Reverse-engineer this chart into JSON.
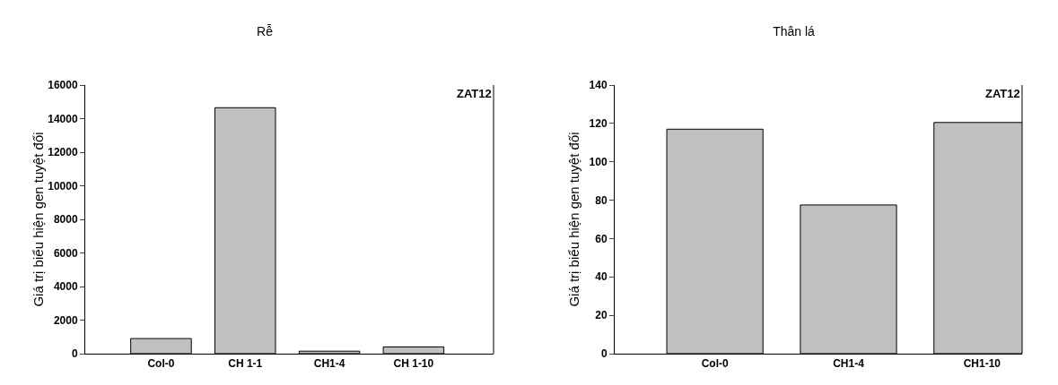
{
  "chart_data": [
    {
      "type": "bar",
      "title": "Rễ",
      "ylabel": "Giá trị biểu hiện gen tuyệt đối",
      "categories": [
        "Col-0",
        "CH 1-1",
        "CH1-4",
        "CH 1-10"
      ],
      "values": [
        900,
        14650,
        150,
        400
      ],
      "color": "#c0c0c0",
      "ylim": [
        0,
        16000
      ],
      "yticks": [
        0,
        2000,
        4000,
        6000,
        8000,
        10000,
        12000,
        14000,
        16000
      ],
      "annotations": [
        "ZAT12"
      ]
    },
    {
      "type": "bar",
      "title": "Thân lá",
      "ylabel": "Giá trị biểu hiện gen tuyệt đối",
      "categories": [
        "Col-0",
        "CH1-4",
        "CH1-10"
      ],
      "values": [
        117,
        77.5,
        120.5
      ],
      "color": "#c0c0c0",
      "ylim": [
        0,
        140
      ],
      "yticks": [
        0,
        20,
        40,
        60,
        80,
        100,
        120,
        140
      ],
      "annotations": [
        "ZAT12"
      ]
    }
  ]
}
